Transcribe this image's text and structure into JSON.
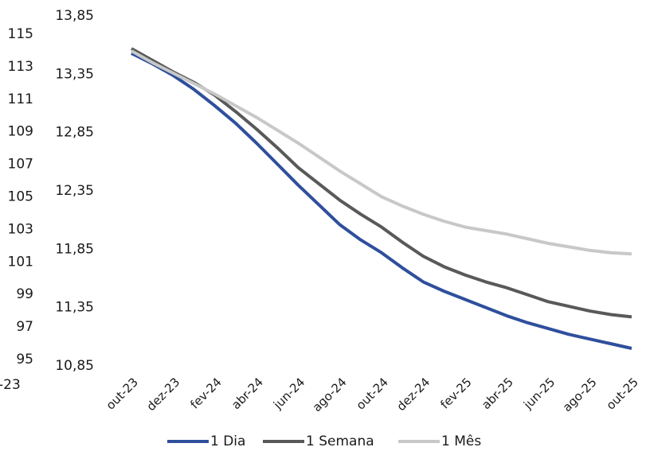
{
  "chart_data": [
    {
      "type": "line",
      "categories": [
        "-23"
      ],
      "ylim": [
        95,
        115
      ],
      "yticks": [
        95,
        97,
        99,
        101,
        103,
        105,
        107,
        109,
        111,
        113,
        115
      ]
    },
    {
      "type": "line",
      "categories": [
        "out-23",
        null,
        "dez-23",
        null,
        "fev-24",
        null,
        "abr-24",
        null,
        "jun-24",
        null,
        "ago-24",
        null,
        "out-24",
        null,
        "dez-24",
        null,
        "fev-25",
        null,
        "abr-25",
        null,
        "jun-25",
        null,
        "ago-25",
        null,
        "out-25"
      ],
      "ylim": [
        10.85,
        13.85
      ],
      "yticks": [
        {
          "value": 10.85,
          "label": "10,85"
        },
        {
          "value": 11.35,
          "label": "11,35"
        },
        {
          "value": 11.85,
          "label": "11,85"
        },
        {
          "value": 12.35,
          "label": "12,35"
        },
        {
          "value": 12.85,
          "label": "12,85"
        },
        {
          "value": 13.35,
          "label": "13,35"
        },
        {
          "value": 13.85,
          "label": "13,85"
        }
      ],
      "legend": "bottom",
      "series": [
        {
          "name": "1 Dia",
          "color": "#2f4f9c",
          "values": [
            13.53,
            13.44,
            13.34,
            13.22,
            13.08,
            12.93,
            12.76,
            12.58,
            12.4,
            12.23,
            12.06,
            11.93,
            11.82,
            11.69,
            11.57,
            11.49,
            11.42,
            11.35,
            11.28,
            11.22,
            11.17,
            11.12,
            11.08,
            11.04,
            11.0
          ]
        },
        {
          "name": "1 Semana",
          "color": "#595959",
          "values": [
            13.57,
            13.47,
            13.37,
            13.28,
            13.17,
            13.03,
            12.88,
            12.72,
            12.55,
            12.41,
            12.27,
            12.15,
            12.04,
            11.91,
            11.79,
            11.7,
            11.63,
            11.57,
            11.52,
            11.46,
            11.4,
            11.36,
            11.32,
            11.29,
            11.27
          ]
        },
        {
          "name": "1 Mês",
          "color": "#c8c8c8",
          "values": [
            13.55,
            13.45,
            13.36,
            13.27,
            13.18,
            13.08,
            12.98,
            12.87,
            12.76,
            12.64,
            12.52,
            12.41,
            12.3,
            12.22,
            12.15,
            12.09,
            12.04,
            12.01,
            11.98,
            11.94,
            11.9,
            11.87,
            11.84,
            11.82,
            11.81
          ]
        }
      ]
    }
  ]
}
